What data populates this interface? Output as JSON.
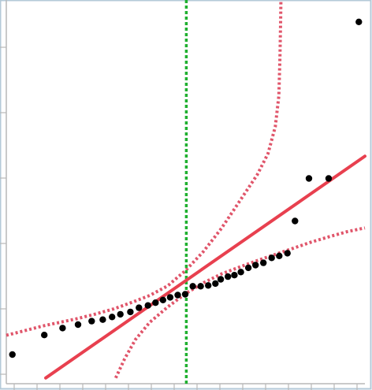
{
  "chart_data": {
    "type": "scatter",
    "title": "",
    "xlabel": "",
    "ylabel": "",
    "xlim": [
      0,
      100
    ],
    "ylim": [
      0,
      100
    ],
    "grid": false,
    "legend": "none",
    "colors": {
      "background": "#ffffff",
      "frame": "#b4cad8",
      "axis": "#b8b8b8",
      "points": "#000000",
      "fit_line": "#e8404f",
      "confidence_band": "#e0556a",
      "reference_line": "#20b030"
    },
    "reference_line_x": 50.2,
    "points": [
      {
        "x": 1.7,
        "y": 7.6
      },
      {
        "x": 10.6,
        "y": 12.7
      },
      {
        "x": 15.7,
        "y": 14.5
      },
      {
        "x": 20.0,
        "y": 15.4
      },
      {
        "x": 23.8,
        "y": 16.3
      },
      {
        "x": 26.9,
        "y": 16.7
      },
      {
        "x": 29.5,
        "y": 17.4
      },
      {
        "x": 31.8,
        "y": 18.1
      },
      {
        "x": 34.6,
        "y": 18.7
      },
      {
        "x": 37.0,
        "y": 19.8
      },
      {
        "x": 39.5,
        "y": 20.4
      },
      {
        "x": 41.6,
        "y": 21.1
      },
      {
        "x": 43.7,
        "y": 21.8
      },
      {
        "x": 45.7,
        "y": 22.5
      },
      {
        "x": 47.8,
        "y": 23.1
      },
      {
        "x": 49.9,
        "y": 23.3
      },
      {
        "x": 52.0,
        "y": 25.4
      },
      {
        "x": 54.2,
        "y": 25.4
      },
      {
        "x": 56.3,
        "y": 25.6
      },
      {
        "x": 58.3,
        "y": 26.1
      },
      {
        "x": 59.8,
        "y": 27.2
      },
      {
        "x": 61.8,
        "y": 27.9
      },
      {
        "x": 63.6,
        "y": 28.3
      },
      {
        "x": 65.4,
        "y": 29.1
      },
      {
        "x": 67.5,
        "y": 30.2
      },
      {
        "x": 69.5,
        "y": 30.9
      },
      {
        "x": 71.7,
        "y": 31.5
      },
      {
        "x": 74.0,
        "y": 32.8
      },
      {
        "x": 76.1,
        "y": 33.3
      },
      {
        "x": 78.4,
        "y": 34.0
      },
      {
        "x": 80.5,
        "y": 42.4
      },
      {
        "x": 84.4,
        "y": 53.5
      },
      {
        "x": 89.9,
        "y": 53.5
      },
      {
        "x": 98.3,
        "y": 94.3
      }
    ],
    "fit_line": {
      "x": [
        11,
        100
      ],
      "y": 1.5,
      "y_end": 59.3
    },
    "confidence_band": {
      "lower": [
        [
          30.5,
          1.5
        ],
        [
          33,
          6.5
        ],
        [
          36,
          11.5
        ],
        [
          40,
          16
        ],
        [
          45,
          20
        ],
        [
          50,
          23.5
        ],
        [
          55,
          26.3
        ],
        [
          60,
          28.6
        ],
        [
          65,
          30.4
        ],
        [
          70,
          32.1
        ],
        [
          75,
          33.7
        ],
        [
          80,
          35.3
        ],
        [
          85,
          36.9
        ],
        [
          90,
          38.3
        ],
        [
          95,
          39.6
        ],
        [
          100,
          40.6
        ]
      ],
      "upper": [
        [
          0,
          12.6
        ],
        [
          5,
          13.8
        ],
        [
          10,
          15.0
        ],
        [
          15,
          16.0
        ],
        [
          20,
          17.0
        ],
        [
          25,
          18.2
        ],
        [
          30,
          19.5
        ],
        [
          35,
          21.2
        ],
        [
          40,
          23.0
        ],
        [
          45,
          25.5
        ],
        [
          50,
          29.5
        ],
        [
          55,
          34.5
        ],
        [
          60,
          40.5
        ],
        [
          65,
          47.5
        ],
        [
          70,
          54.5
        ],
        [
          73,
          60
        ],
        [
          75,
          67
        ],
        [
          76,
          75
        ],
        [
          76.3,
          85
        ],
        [
          76.5,
          95
        ],
        [
          76.6,
          101
        ]
      ]
    }
  }
}
